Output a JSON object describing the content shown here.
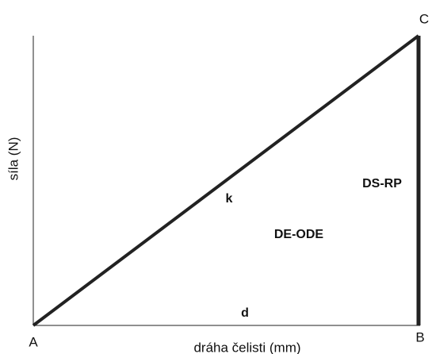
{
  "points": {
    "a": "A",
    "b": "B",
    "c": "C"
  },
  "labels": {
    "slope": "k",
    "base": "d",
    "area": "DE-ODE",
    "vertical": "DS-RP"
  },
  "axes": {
    "x_label": "dráha čelisti (mm)",
    "y_label": "síla (N)"
  }
}
